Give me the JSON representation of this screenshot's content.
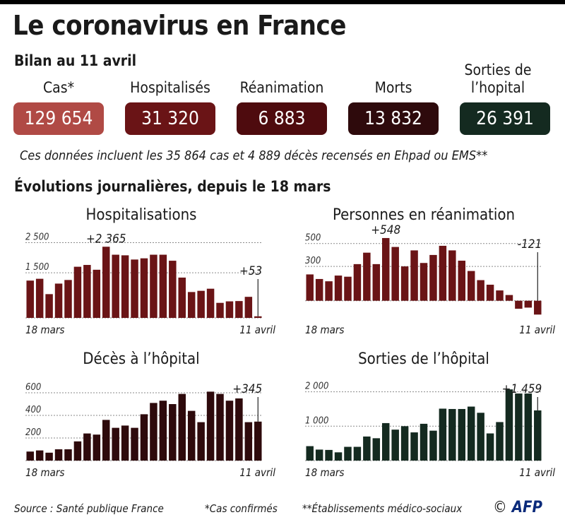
{
  "title": "Le coronavirus en France",
  "subtitle": "Bilan au 11 avril",
  "kpis": [
    {
      "label": "Cas*",
      "value": "129 654",
      "color": "#b04a45"
    },
    {
      "label": "Hospitalisés",
      "value": "31 320",
      "color": "#6a1416"
    },
    {
      "label": "Réanimation",
      "value": "6 883",
      "color": "#4e0b0e"
    },
    {
      "label": "Morts",
      "value": "13 832",
      "color": "#2e0a0c"
    },
    {
      "label": "Sorties de l’hopital",
      "value": "26 391",
      "color": "#142a20"
    }
  ],
  "note": "Ces données incluent les 35 864 cas et 4 889 décès recensés en Ehpad ou EMS**",
  "section_title": "Évolutions journalières, depuis le 18 mars",
  "footer": {
    "source": "Source : Santé publique France",
    "cases_note": "*Cas confirmés",
    "ems_note": "**Établissements médico-sociaux",
    "copyright": "©",
    "brand": "AFP"
  },
  "chart_data": [
    {
      "type": "bar",
      "title": "Hospitalisations",
      "color": "#6a1416",
      "x_start": "18 mars",
      "x_end": "11 avril",
      "yticks": [
        1500,
        2500
      ],
      "ytick_labels": [
        "1 500",
        "2 500"
      ],
      "ylim": [
        0,
        2700
      ],
      "values": [
        1240,
        1300,
        790,
        1140,
        1260,
        1700,
        1760,
        1600,
        2365,
        2100,
        2080,
        1940,
        1980,
        2100,
        2100,
        1900,
        1340,
        860,
        900,
        970,
        500,
        550,
        560,
        700,
        53
      ],
      "annotations": [
        {
          "text": "+2 365",
          "index": 8
        },
        {
          "text": "+53",
          "index": 24
        }
      ]
    },
    {
      "type": "bar",
      "title": "Personnes en réanimation",
      "color": "#6a1416",
      "x_start": "18 mars",
      "x_end": "11 avril",
      "yticks": [
        300,
        500
      ],
      "ytick_labels": [
        "300",
        "500"
      ],
      "ylim": [
        -150,
        560
      ],
      "values": [
        230,
        190,
        170,
        220,
        210,
        320,
        420,
        320,
        548,
        470,
        300,
        440,
        330,
        400,
        480,
        440,
        350,
        260,
        180,
        140,
        90,
        50,
        -70,
        -60,
        -121
      ],
      "annotations": [
        {
          "text": "+548",
          "index": 8
        },
        {
          "text": "-121",
          "index": 24
        }
      ]
    },
    {
      "type": "bar",
      "title": "Décès à l’hôpital",
      "color": "#2e0a0c",
      "x_start": "18 mars",
      "x_end": "11 avril",
      "yticks": [
        200,
        400,
        600
      ],
      "ytick_labels": [
        "200",
        "400",
        "600"
      ],
      "ylim": [
        0,
        700
      ],
      "values": [
        80,
        90,
        70,
        100,
        100,
        170,
        240,
        230,
        360,
        290,
        310,
        290,
        410,
        510,
        530,
        500,
        590,
        440,
        340,
        610,
        590,
        530,
        550,
        340,
        345
      ],
      "annotations": [
        {
          "text": "+345",
          "index": 24
        }
      ]
    },
    {
      "type": "bar",
      "title": "Sorties de l’hôpital",
      "color": "#142a20",
      "x_start": "18 mars",
      "x_end": "11 avril",
      "yticks": [
        1000,
        2000
      ],
      "ytick_labels": [
        "1 000",
        "2 000"
      ],
      "ylim": [
        0,
        2300
      ],
      "values": [
        420,
        320,
        310,
        240,
        400,
        400,
        700,
        650,
        1090,
        900,
        1000,
        820,
        1070,
        870,
        1510,
        1500,
        1500,
        1570,
        1390,
        790,
        1120,
        2070,
        1950,
        1950,
        1459
      ],
      "annotations": [
        {
          "text": "+1 459",
          "index": 24
        }
      ]
    }
  ]
}
